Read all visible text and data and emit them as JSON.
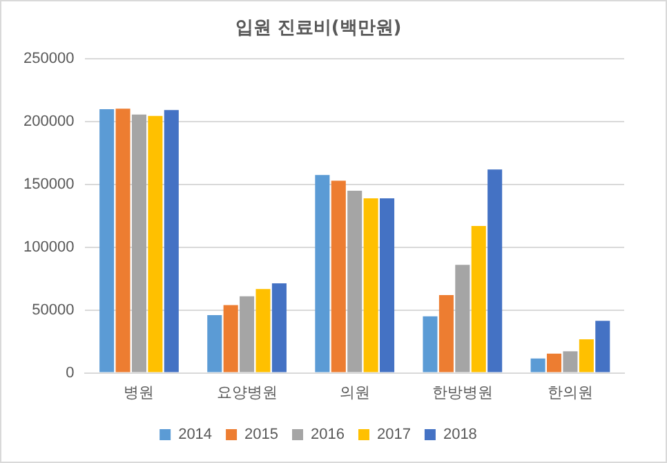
{
  "chart_data": {
    "type": "bar",
    "title": "입원 진료비(백만원)",
    "categories": [
      "병원",
      "요양병원",
      "의원",
      "한방병원",
      "한의원"
    ],
    "series": [
      {
        "name": "2014",
        "color": "#5b9bd5",
        "values": [
          210000,
          46000,
          157500,
          45000,
          11500
        ]
      },
      {
        "name": "2015",
        "color": "#ed7d31",
        "values": [
          210400,
          54000,
          153000,
          62000,
          15300
        ]
      },
      {
        "name": "2016",
        "color": "#a5a5a5",
        "values": [
          205700,
          61000,
          145000,
          86000,
          17200
        ]
      },
      {
        "name": "2017",
        "color": "#ffc000",
        "values": [
          204600,
          66700,
          139000,
          117000,
          26800
        ]
      },
      {
        "name": "2018",
        "color": "#4472c4",
        "values": [
          209200,
          71300,
          139000,
          162000,
          41400
        ]
      }
    ],
    "ylim": [
      0,
      250000
    ],
    "yticks": [
      0,
      50000,
      100000,
      150000,
      200000,
      250000
    ],
    "grid": "y",
    "legend": "bottom"
  }
}
